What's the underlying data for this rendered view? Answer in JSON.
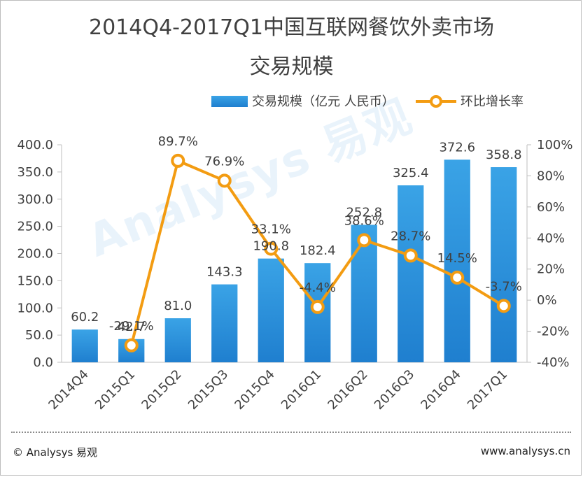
{
  "title_line1": "2014Q4-2017Q1中国互联网餐饮外卖市场",
  "title_line2": "交易规模",
  "footer": {
    "left": "© Analysys 易观",
    "right": "www.analysys.cn"
  },
  "watermark": "Analysys 易观",
  "colors": {
    "bar": "#2f8fd6",
    "bar_light": "#3aa3e6",
    "line": "#f39c12",
    "text": "#404040"
  },
  "chart_data": {
    "type": "bar+line",
    "categories": [
      "2014Q4",
      "2015Q1",
      "2015Q2",
      "2015Q3",
      "2015Q4",
      "2016Q1",
      "2016Q2",
      "2016Q3",
      "2016Q4",
      "2017Q1"
    ],
    "series": [
      {
        "name": "交易规模（亿元 人民币）",
        "type": "bar",
        "axis": "left",
        "values": [
          60.2,
          42.7,
          81.0,
          143.3,
          190.8,
          182.4,
          252.8,
          325.4,
          372.6,
          358.8
        ],
        "labels": [
          "60.2",
          "42.7",
          "81.0",
          "143.3",
          "190.8",
          "182.4",
          "252.8",
          "325.4",
          "372.6",
          "358.8"
        ]
      },
      {
        "name": "环比增长率",
        "type": "line",
        "axis": "right",
        "values": [
          null,
          -29.1,
          89.7,
          76.9,
          33.1,
          -4.4,
          38.6,
          28.7,
          14.5,
          -3.7
        ],
        "labels": [
          "",
          "-29.1%",
          "89.7%",
          "76.9%",
          "33.1%",
          "-4.4%",
          "38.6%",
          "28.7%",
          "14.5%",
          "-3.7%"
        ]
      }
    ],
    "y_left": {
      "ylim": [
        0,
        400
      ],
      "ticks": [
        "0.0",
        "50.0",
        "100.0",
        "150.0",
        "200.0",
        "250.0",
        "300.0",
        "350.0",
        "400.0"
      ]
    },
    "y_right": {
      "ylim": [
        -40,
        100
      ],
      "ticks": [
        "-40%",
        "-20%",
        "0%",
        "20%",
        "40%",
        "60%",
        "80%",
        "100%"
      ]
    },
    "legend_position": "top-right"
  }
}
